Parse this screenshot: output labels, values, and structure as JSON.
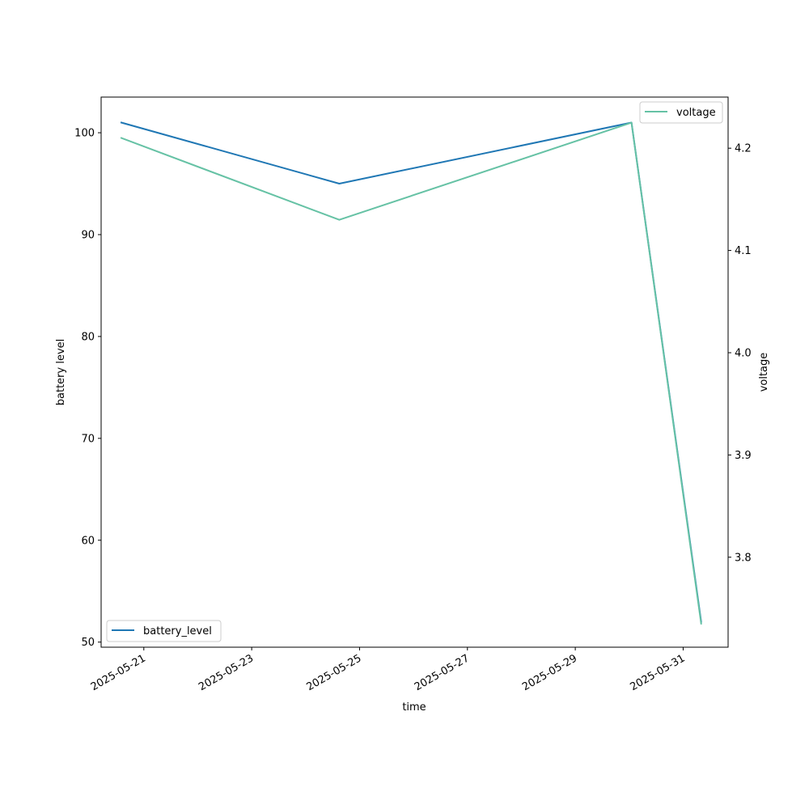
{
  "chart_data": {
    "type": "line",
    "title": "",
    "xlabel": "time",
    "ylabel_left": "battery level",
    "ylabel_right": "voltage",
    "x_ticks": [
      "2025-05-21",
      "2025-05-23",
      "2025-05-25",
      "2025-05-27",
      "2025-05-29",
      "2025-05-31"
    ],
    "x_range": [
      "2025-05-20T05:00",
      "2025-05-31T20:00"
    ],
    "y_left_ticks": [
      50,
      60,
      70,
      80,
      90,
      100
    ],
    "y_left_range": [
      49.5,
      103.5
    ],
    "y_right_ticks": [
      "3.8",
      "3.9",
      "4.0",
      "4.1",
      "4.2"
    ],
    "y_right_range": [
      3.712,
      4.25
    ],
    "grid": false,
    "series": [
      {
        "name": "battery_level",
        "axis": "left",
        "color": "#1f77b4",
        "legend_position": "lower left",
        "x": [
          "2025-05-20T14:00",
          "2025-05-24T15:00",
          "2025-05-30T01:00",
          "2025-05-31T08:00"
        ],
        "y": [
          101,
          95,
          101,
          52
        ]
      },
      {
        "name": "voltage",
        "axis": "right",
        "color": "#66c2a5",
        "legend_position": "upper right",
        "x": [
          "2025-05-20T14:00",
          "2025-05-24T15:00",
          "2025-05-30T01:00",
          "2025-05-31T08:00"
        ],
        "y": [
          4.21,
          4.13,
          4.225,
          3.735
        ]
      }
    ]
  }
}
